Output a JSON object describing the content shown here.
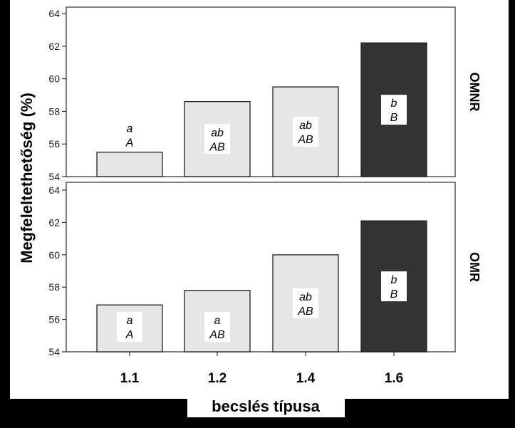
{
  "chart_data": {
    "type": "bar",
    "xlabel": "becslés típusa",
    "ylabel": "Megfeleltethetőség (%)",
    "categories": [
      "1.1",
      "1.2",
      "1.4",
      "1.6"
    ],
    "ylim": [
      54,
      64
    ],
    "yticks": [
      "54",
      "56",
      "58",
      "60",
      "62",
      "64"
    ],
    "grid": false,
    "legend": "none",
    "bar_colors": [
      "#e6e6e6",
      "#e6e6e6",
      "#e6e6e6",
      "#333333"
    ],
    "panels": [
      {
        "name": "OMNR",
        "values": [
          55.5,
          58.6,
          59.5,
          62.2
        ],
        "letters": [
          [
            "a",
            "A"
          ],
          [
            "ab",
            "AB"
          ],
          [
            "ab",
            "AB"
          ],
          [
            "b",
            "B"
          ]
        ]
      },
      {
        "name": "OMR",
        "values": [
          56.9,
          57.8,
          60.0,
          62.1
        ],
        "letters": [
          [
            "a",
            "A"
          ],
          [
            "a",
            "AB"
          ],
          [
            "ab",
            "AB"
          ],
          [
            "b",
            "B"
          ]
        ]
      }
    ]
  }
}
